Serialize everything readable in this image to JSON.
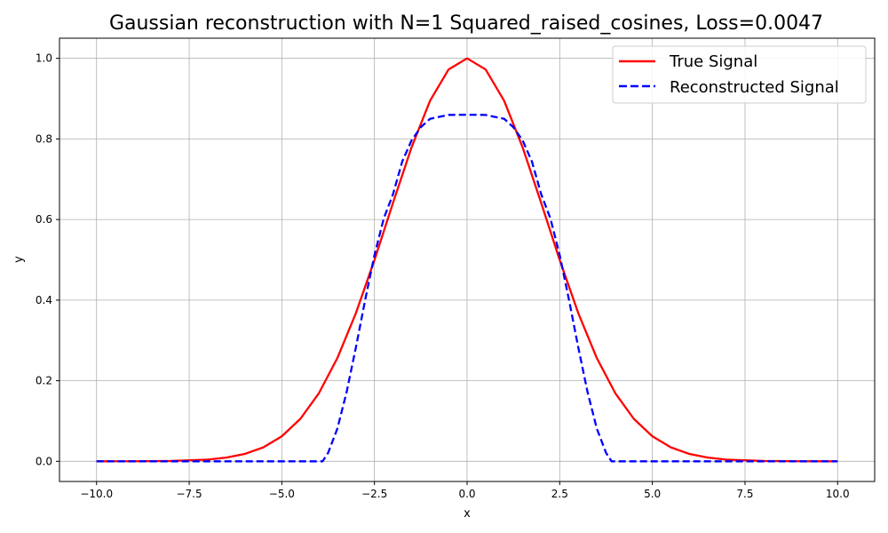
{
  "chart_data": {
    "type": "line",
    "title": "Gaussian reconstruction with N=1 Squared_raised_cosines, Loss=0.0047",
    "xlabel": "x",
    "ylabel": "y",
    "xlim": [
      -11.0,
      11.0
    ],
    "ylim": [
      -0.05,
      1.05
    ],
    "xticks": [
      -10.0,
      -7.5,
      -5.0,
      -2.5,
      0.0,
      2.5,
      5.0,
      7.5,
      10.0
    ],
    "xtick_labels": [
      "−10.0",
      "−7.5",
      "−5.0",
      "−2.5",
      "0.0",
      "2.5",
      "5.0",
      "7.5",
      "10.0"
    ],
    "yticks": [
      0.0,
      0.2,
      0.4,
      0.6,
      0.8,
      1.0
    ],
    "ytick_labels": [
      "0.0",
      "0.2",
      "0.4",
      "0.6",
      "0.8",
      "1.0"
    ],
    "grid": true,
    "legend_position": "top-right",
    "series": [
      {
        "name": "True Signal",
        "color": "#ff0000",
        "style": "solid",
        "x": [
          -10,
          -9,
          -8,
          -7,
          -6.5,
          -6,
          -5.5,
          -5,
          -4.5,
          -4,
          -3.5,
          -3,
          -2.5,
          -2,
          -1.5,
          -1,
          -0.5,
          0,
          0.5,
          1,
          1.5,
          2,
          2.5,
          3,
          3.5,
          4,
          4.5,
          5,
          5.5,
          6,
          6.5,
          7,
          8,
          9,
          10
        ],
        "y": [
          0.0,
          0.0002,
          0.0008,
          0.0043,
          0.0092,
          0.0183,
          0.0346,
          0.0622,
          0.1054,
          0.169,
          0.2564,
          0.3679,
          0.4994,
          0.6412,
          0.7788,
          0.8948,
          0.9724,
          1.0,
          0.9724,
          0.8948,
          0.7788,
          0.6412,
          0.4994,
          0.3679,
          0.2564,
          0.169,
          0.1054,
          0.0622,
          0.0346,
          0.0183,
          0.0092,
          0.0043,
          0.0008,
          0.0002,
          0.0
        ]
      },
      {
        "name": "Reconstructed Signal",
        "color": "#0000ff",
        "style": "dashed",
        "x": [
          -10,
          -5,
          -4,
          -3.9,
          -3.75,
          -3.5,
          -3.25,
          -3,
          -2.75,
          -2.5,
          -2.25,
          -2,
          -1.75,
          -1.5,
          -1.25,
          -1,
          -0.5,
          0,
          0.5,
          1,
          1.25,
          1.5,
          1.75,
          2,
          2.25,
          2.5,
          2.75,
          3,
          3.25,
          3.5,
          3.75,
          3.9,
          4,
          5,
          10
        ],
        "y": [
          0,
          0,
          0,
          0,
          0.0211,
          0.0815,
          0.1723,
          0.283,
          0.4008,
          0.5115,
          0.6023,
          0.6627,
          0.744,
          0.796,
          0.829,
          0.85,
          0.8596,
          0.86,
          0.8596,
          0.85,
          0.829,
          0.796,
          0.744,
          0.6627,
          0.6023,
          0.5115,
          0.4008,
          0.283,
          0.1723,
          0.0815,
          0.0211,
          0,
          0,
          0,
          0
        ]
      }
    ]
  }
}
